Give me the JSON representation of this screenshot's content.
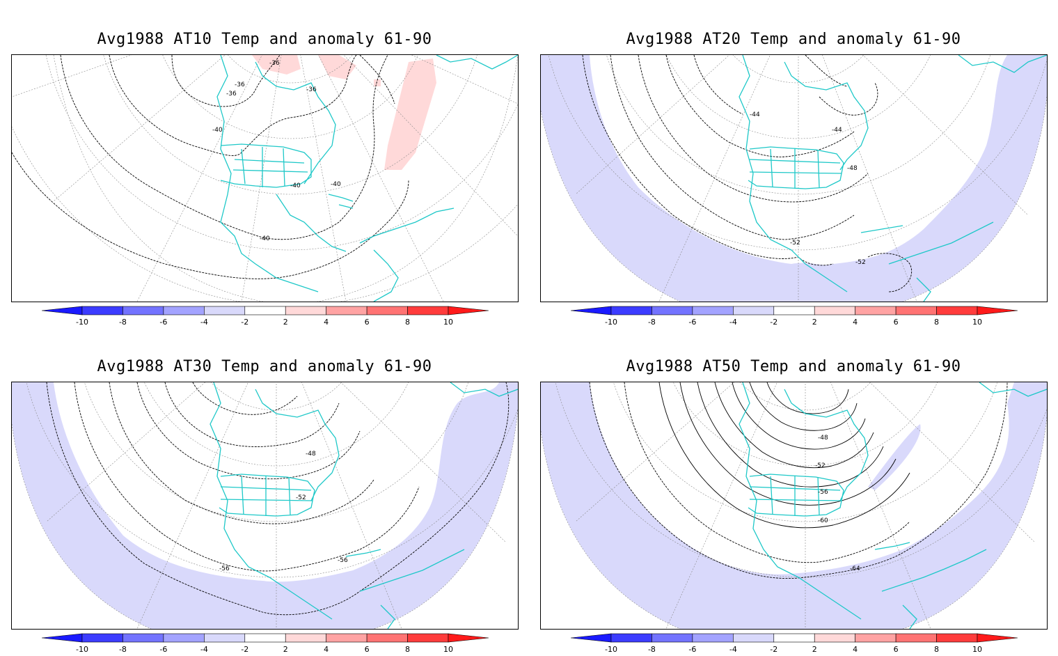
{
  "panels": [
    {
      "title": "Avg1988 AT10 Temp and anomaly 61-90",
      "contour_labels": [
        "-36",
        "-36",
        "-36",
        "-36",
        "-40",
        "-40",
        "-40",
        "-40"
      ]
    },
    {
      "title": "Avg1988 AT20 Temp and anomaly 61-90",
      "contour_labels": [
        "-44",
        "-44",
        "-48",
        "-52",
        "-52"
      ]
    },
    {
      "title": "Avg1988 AT30 Temp and anomaly 61-90",
      "contour_labels": [
        "-48",
        "-52",
        "-56",
        "-56"
      ]
    },
    {
      "title": "Avg1988 AT50 Temp and anomaly 61-90",
      "contour_labels": [
        "-48",
        "-52",
        "-56",
        "-60",
        "-64"
      ]
    }
  ],
  "colorbar": {
    "tick_labels": [
      "-10",
      "-8",
      "-6",
      "-4",
      "-2",
      "2",
      "4",
      "6",
      "8",
      "10"
    ],
    "colors": [
      "#1a1aff",
      "#3c3cff",
      "#7373ff",
      "#a3a3ff",
      "#d9d9fb",
      "#ffffff",
      "#ffd9d9",
      "#ffa3a3",
      "#ff7373",
      "#ff3c3c",
      "#ff1a1a"
    ]
  },
  "colors": {
    "coastline": "#1ec8c8",
    "negative_anomaly": "#d9d9fb",
    "positive_anomaly": "#ffd9d9",
    "contour": "#000000"
  }
}
